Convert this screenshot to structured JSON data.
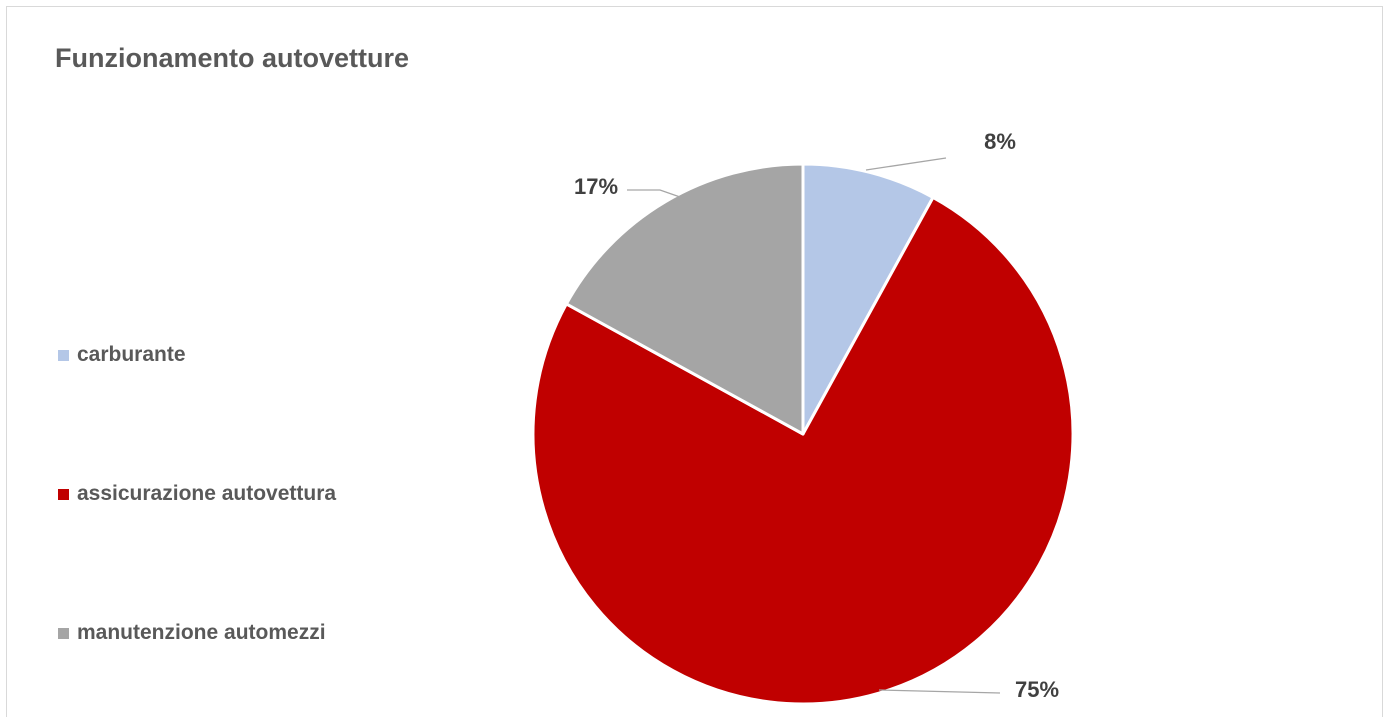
{
  "chart_data": {
    "type": "pie",
    "title": "Funzionamento autovetture",
    "categories": [
      "carburante",
      "assicurazione autovettura",
      "manutenzione automezzi"
    ],
    "values": [
      8,
      75,
      17
    ],
    "data_labels": [
      "8%",
      "75%",
      "17%"
    ],
    "colors": [
      "#b4c7e7",
      "#c00000",
      "#a5a5a5"
    ],
    "legend_position": "left"
  }
}
